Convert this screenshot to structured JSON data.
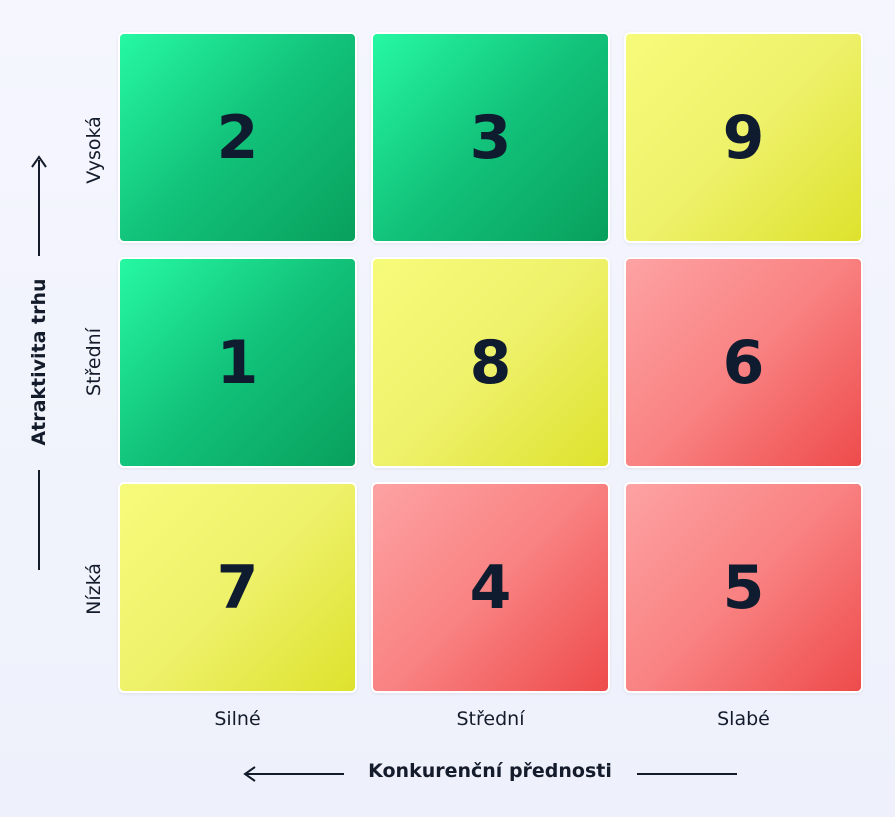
{
  "y_axis": {
    "title": "Atraktivita trhu",
    "levels": [
      "Vysoká",
      "Střední",
      "Nízká"
    ]
  },
  "x_axis": {
    "title": "Konkurenční přednosti",
    "levels": [
      "Silné",
      "Střední",
      "Slabé"
    ]
  },
  "cells": [
    [
      {
        "number": "2",
        "color": "#12c27a"
      },
      {
        "number": "3",
        "color": "#12c27a"
      },
      {
        "number": "9",
        "color": "#eef16a"
      }
    ],
    [
      {
        "number": "1",
        "color": "#12c27a"
      },
      {
        "number": "8",
        "color": "#eef16a"
      },
      {
        "number": "6",
        "color": "#f98282"
      }
    ],
    [
      {
        "number": "7",
        "color": "#eef16a"
      },
      {
        "number": "4",
        "color": "#f98282"
      },
      {
        "number": "5",
        "color": "#f98282"
      }
    ]
  ],
  "colors": {
    "green": "#12c27a",
    "yellow": "#eef16a",
    "red": "#f98282",
    "text": "#0f1b2e"
  }
}
